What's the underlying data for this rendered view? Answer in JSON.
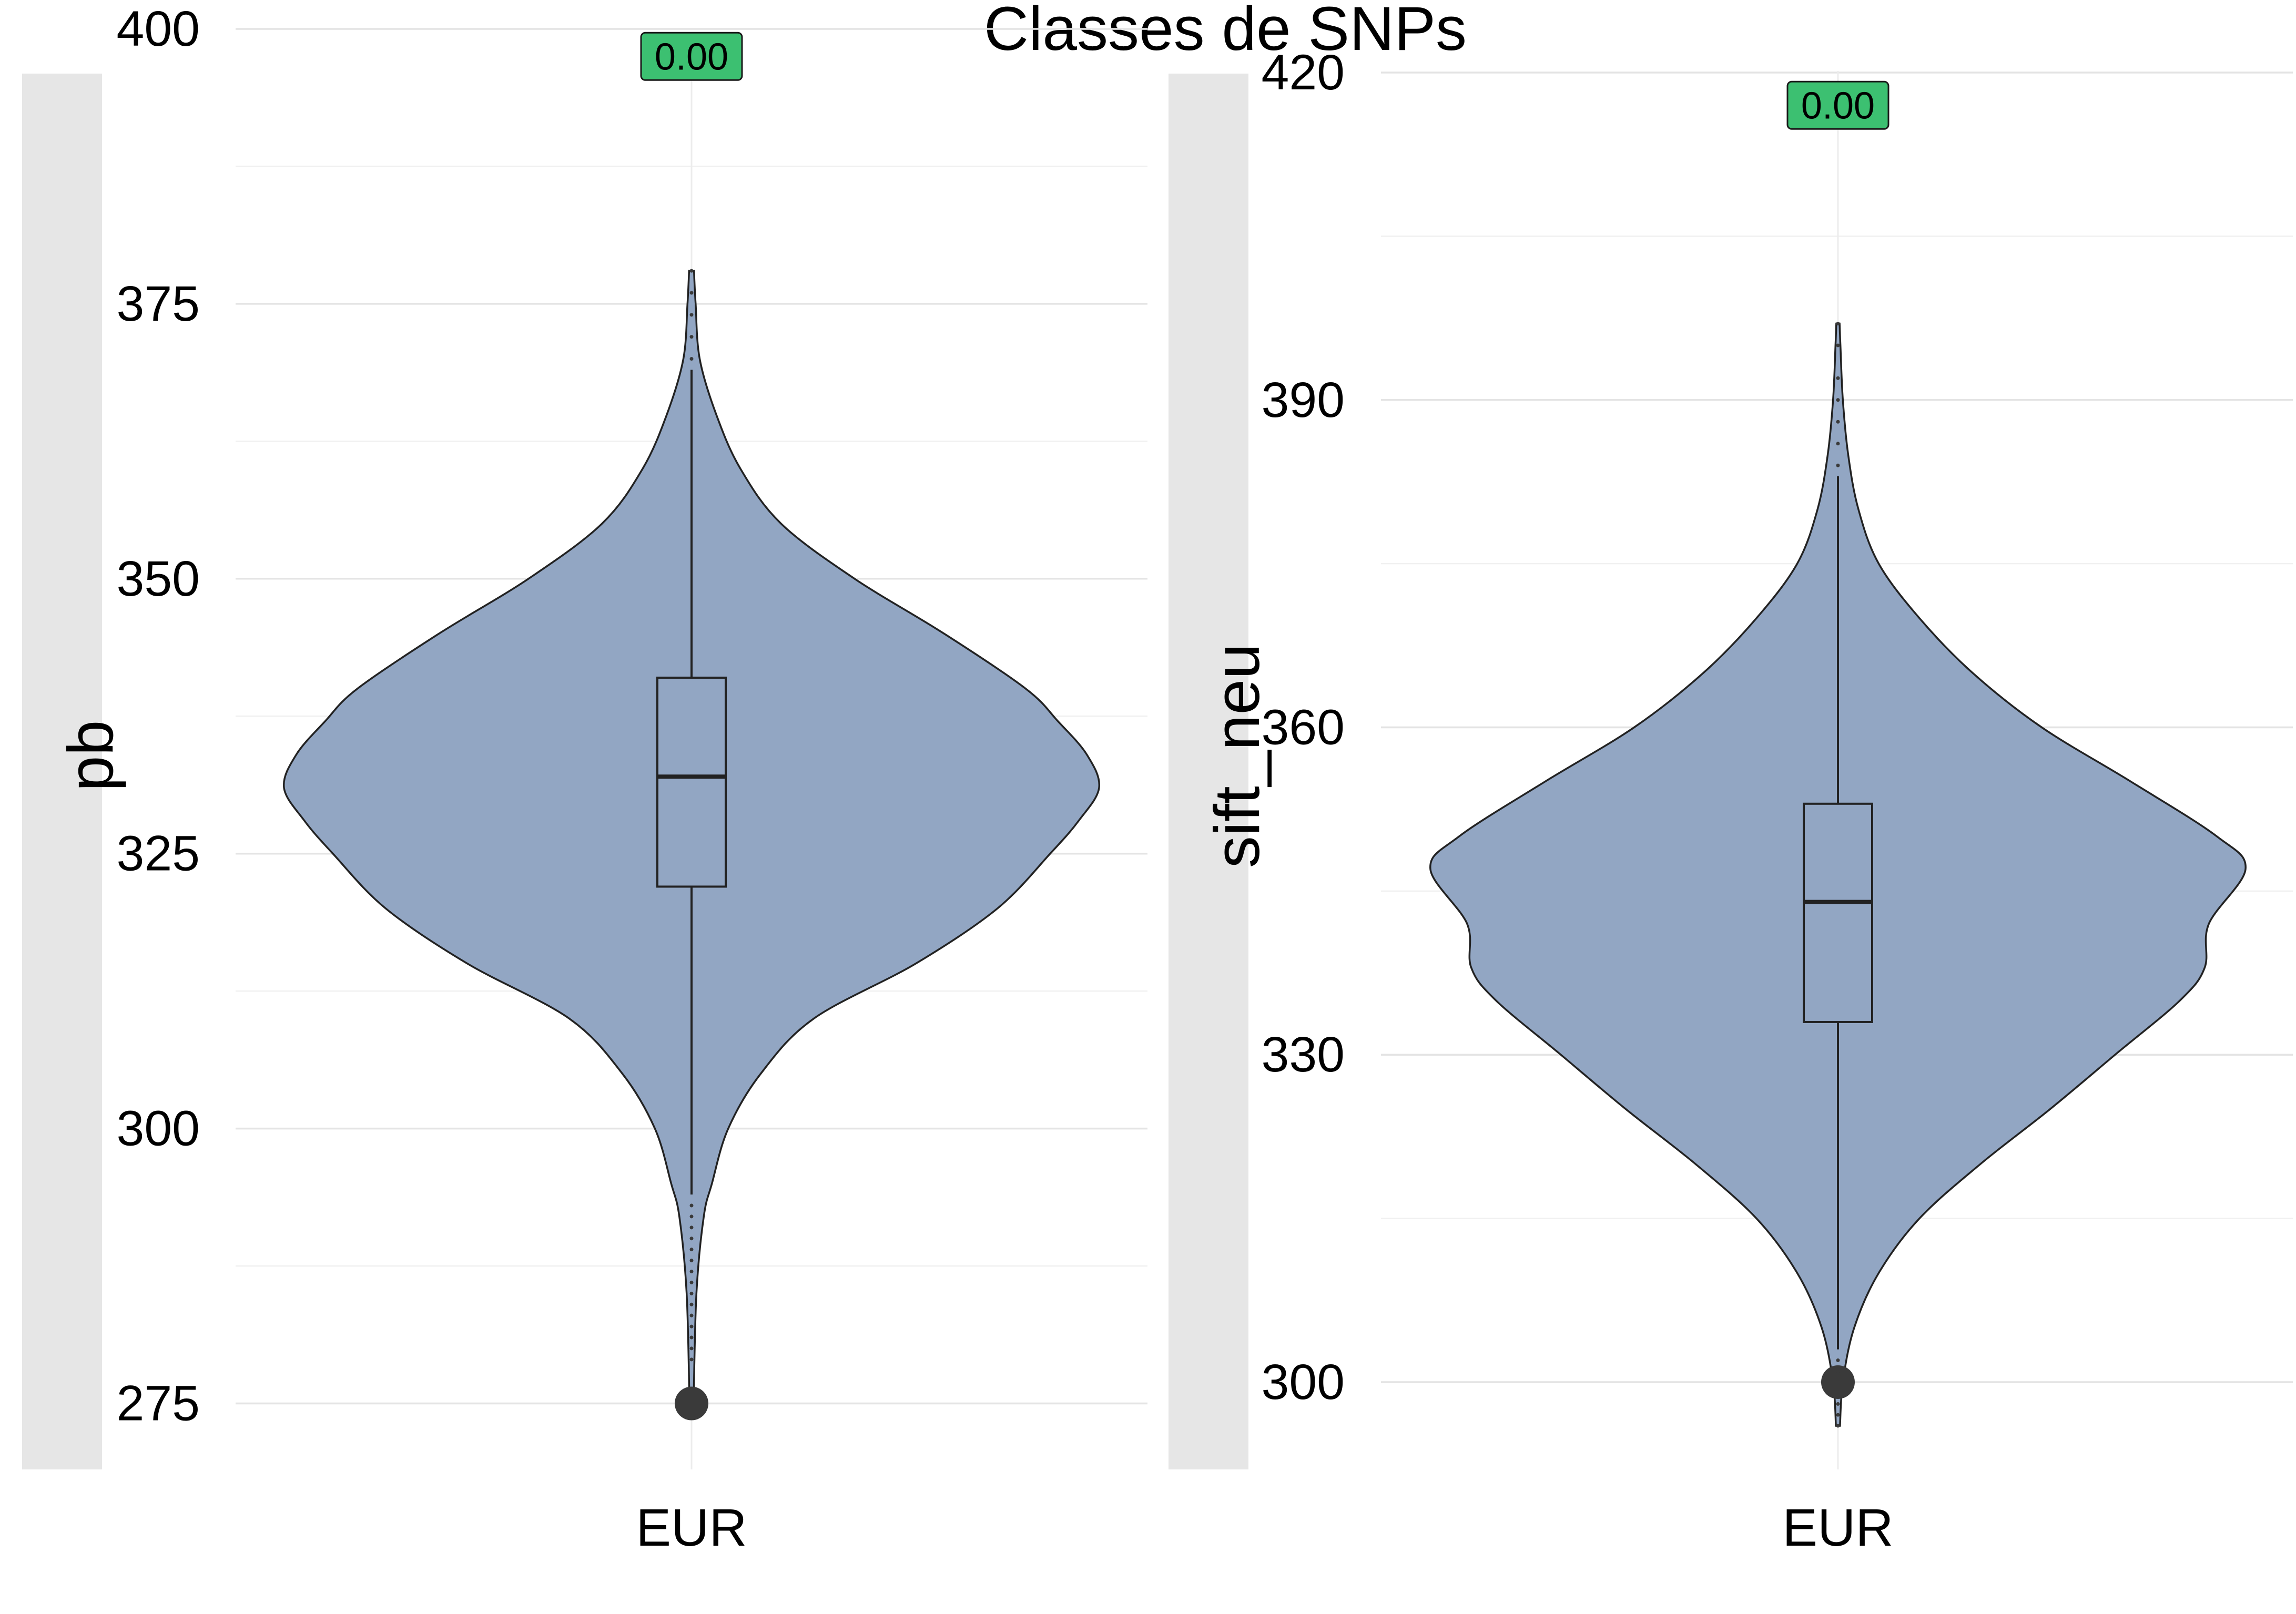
{
  "title": "Classes de SNPs",
  "colors": {
    "violin_fill": "#92A6C3",
    "outline": "#222222",
    "outlier": "#3a3a3a",
    "strip": "#e6e6e6",
    "grid": "#ececec",
    "label_fill": "#3cc071"
  },
  "chart_data": [
    {
      "type": "violin",
      "ylabel": "pb",
      "categories": [
        "EUR"
      ],
      "ylim": [
        269,
        400
      ],
      "yticks": [
        275,
        300,
        325,
        350,
        375,
        400
      ],
      "grid": true,
      "label": "0.00",
      "label_value": 397.5,
      "box": {
        "q1": 322,
        "median": 332,
        "q3": 341,
        "whisker_low": 294,
        "whisker_high": 369
      },
      "outliers": [
        275,
        279,
        280,
        281,
        282,
        283,
        284,
        285,
        286,
        287,
        288,
        289,
        290,
        291,
        292,
        293,
        370,
        372,
        374,
        376,
        378
      ],
      "density": [
        [
          275,
          0.005
        ],
        [
          285,
          0.012
        ],
        [
          292,
          0.03
        ],
        [
          295,
          0.05
        ],
        [
          300,
          0.09
        ],
        [
          305,
          0.17
        ],
        [
          310,
          0.3
        ],
        [
          315,
          0.55
        ],
        [
          320,
          0.75
        ],
        [
          325,
          0.88
        ],
        [
          328,
          0.95
        ],
        [
          331,
          1.0
        ],
        [
          334,
          0.97
        ],
        [
          337,
          0.9
        ],
        [
          340,
          0.82
        ],
        [
          345,
          0.62
        ],
        [
          350,
          0.4
        ],
        [
          355,
          0.22
        ],
        [
          360,
          0.12
        ],
        [
          365,
          0.06
        ],
        [
          370,
          0.02
        ],
        [
          375,
          0.01
        ],
        [
          378,
          0.006
        ]
      ]
    },
    {
      "type": "violin",
      "ylabel": "sift_neu",
      "categories": [
        "EUR"
      ],
      "ylim": [
        292,
        424
      ],
      "yticks": [
        300,
        330,
        360,
        390,
        420
      ],
      "grid": true,
      "label": "0.00",
      "label_value": 417,
      "box": {
        "q1": 333,
        "median": 344,
        "q3": 353,
        "whisker_low": 303,
        "whisker_high": 383
      },
      "outliers": [
        300,
        296,
        297,
        298,
        299,
        301,
        302,
        384,
        386,
        388,
        390,
        392,
        395,
        397
      ],
      "density": [
        [
          296,
          0.005
        ],
        [
          300,
          0.012
        ],
        [
          305,
          0.04
        ],
        [
          310,
          0.1
        ],
        [
          315,
          0.2
        ],
        [
          320,
          0.35
        ],
        [
          325,
          0.52
        ],
        [
          330,
          0.68
        ],
        [
          335,
          0.84
        ],
        [
          338,
          0.9
        ],
        [
          342,
          0.91
        ],
        [
          347,
          1.0
        ],
        [
          350,
          0.93
        ],
        [
          355,
          0.72
        ],
        [
          360,
          0.5
        ],
        [
          365,
          0.33
        ],
        [
          370,
          0.2
        ],
        [
          375,
          0.1
        ],
        [
          380,
          0.05
        ],
        [
          385,
          0.025
        ],
        [
          390,
          0.012
        ],
        [
          395,
          0.006
        ],
        [
          397,
          0.004
        ]
      ]
    }
  ]
}
